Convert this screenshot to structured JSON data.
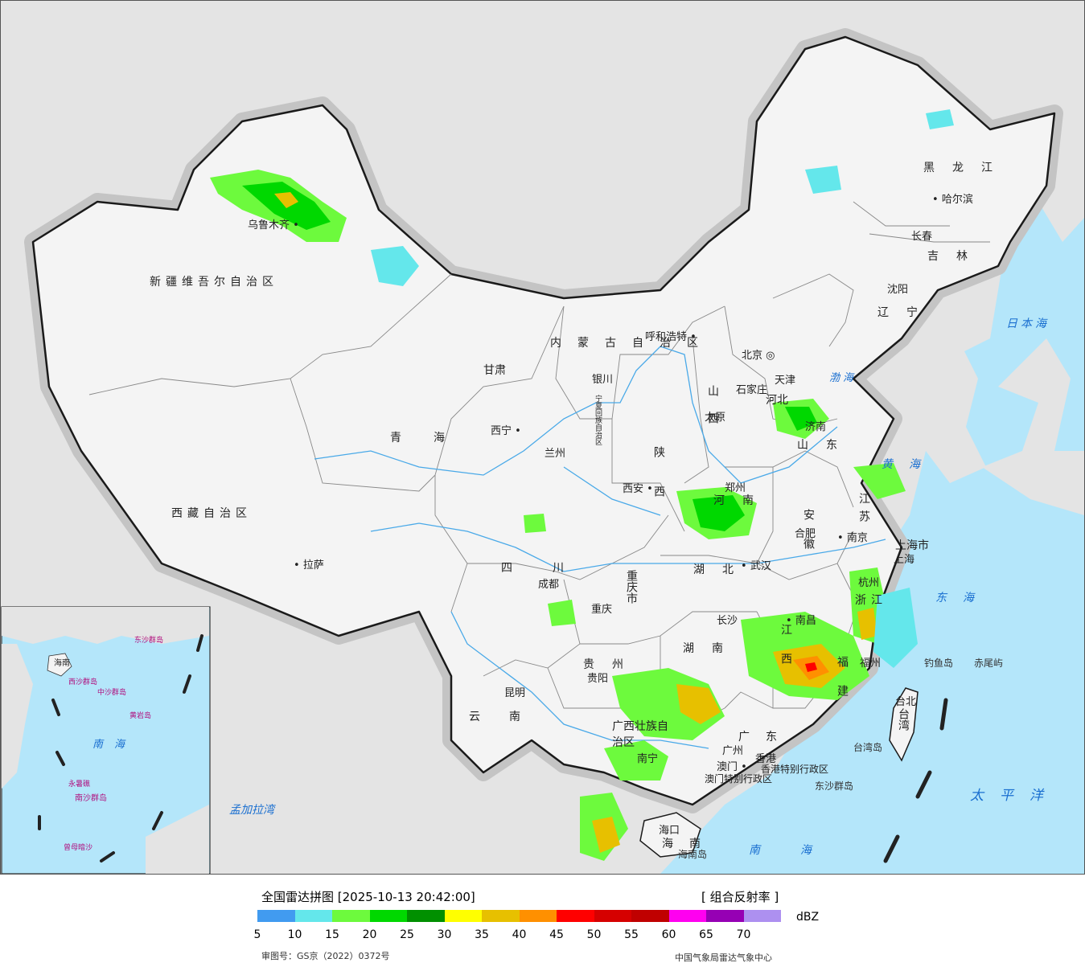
{
  "map": {
    "colors": {
      "sea": "#b4e6fa",
      "land_outside": "#e4e4e4",
      "china_land": "#f4f4f4",
      "border": "#1a1a1a",
      "river": "#49a9e8",
      "shadow": "#c4c4c4"
    },
    "provinces": [
      "新疆维吾尔自治区",
      "西藏自治区",
      "青海",
      "甘肃",
      "内蒙古自治区",
      "黑龙江",
      "吉林",
      "辽宁",
      "河北",
      "山西",
      "陕西",
      "宁夏回族自治区",
      "四川",
      "重庆市",
      "云南",
      "贵州",
      "广西壮族自治区",
      "广东",
      "湖南",
      "湖北",
      "河南",
      "山东",
      "江苏",
      "安徽",
      "浙江",
      "江西",
      "福建",
      "上海市",
      "海南",
      "台湾",
      "香港特别行政区",
      "澳门特别行政区"
    ],
    "cities": [
      "乌鲁木齐",
      "拉萨",
      "西宁",
      "兰州",
      "银川",
      "呼和浩特",
      "北京",
      "天津",
      "石家庄",
      "太原",
      "西安",
      "郑州",
      "济南",
      "南京",
      "合肥",
      "上海",
      "杭州",
      "武汉",
      "长沙",
      "南昌",
      "福州",
      "台北",
      "成都",
      "重庆",
      "贵阳",
      "昆明",
      "南宁",
      "广州",
      "香港",
      "澳门",
      "海口",
      "哈尔滨",
      "长春",
      "沈阳"
    ],
    "seas": [
      "日本海",
      "渤海",
      "黄海",
      "东海",
      "南海",
      "太平洋",
      "孟加拉湾"
    ],
    "islands": [
      "钓鱼岛",
      "赤尾屿",
      "台湾岛",
      "东沙群岛",
      "海南岛"
    ],
    "inset_labels": [
      "南海",
      "中沙群岛",
      "西沙群岛",
      "东沙群岛",
      "黄岩岛",
      "永暑礁",
      "南沙群岛",
      "曾母暗沙",
      "海南"
    ]
  },
  "legend": {
    "title": "全国雷达拼图 [2025-10-13 20:42:00]",
    "product": "[ 组合反射率 ]",
    "unit": "dBZ",
    "scale_colors": [
      "#419bf0",
      "#64e7eb",
      "#6dfa3d",
      "#00d800",
      "#019000",
      "#ffff00",
      "#e7c000",
      "#ff9000",
      "#ff0000",
      "#d60000",
      "#c00000",
      "#ff00f0",
      "#9600b4",
      "#ad90f0"
    ],
    "tick_values": [
      "5",
      "10",
      "15",
      "20",
      "25",
      "30",
      "35",
      "40",
      "45",
      "50",
      "55",
      "60",
      "65",
      "70"
    ],
    "review_number": "审图号：GS京（2022）0372号",
    "issuer": "中国气象局雷达气象中心"
  }
}
